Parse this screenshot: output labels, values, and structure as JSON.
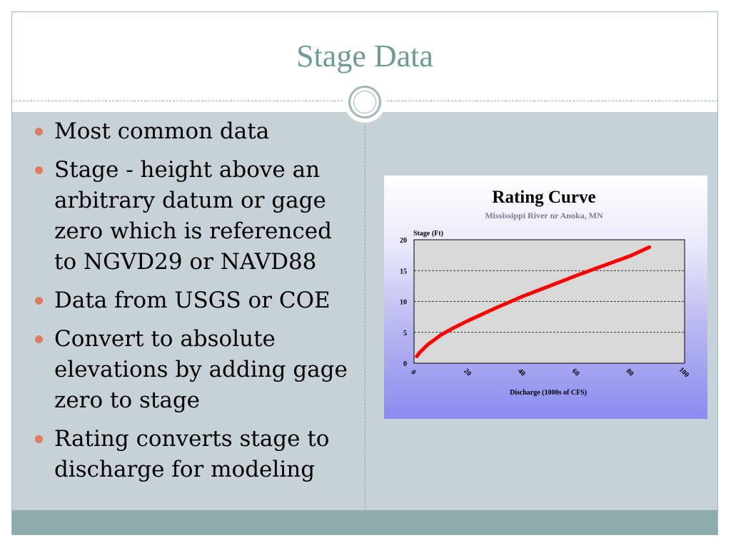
{
  "slide": {
    "title": "Stage Data",
    "bullets": [
      "Most common data",
      "Stage - height above an arbitrary datum or gage zero which is referenced to NGVD29 or NAVD88",
      "Data from USGS or COE",
      "Convert to absolute elevations by adding gage zero to stage",
      "Rating converts stage to discharge for modeling"
    ]
  },
  "colors": {
    "title": "#6d9c98",
    "bullet": "#e07b5b",
    "content_bg": "#c6d2d8",
    "footer": "#8eacac",
    "curve": "#ff0000",
    "plot_bg": "#d9d9d9"
  },
  "chart_data": {
    "type": "line",
    "title": "Rating Curve",
    "subtitle": "Mississippi River nr Anoka, MN",
    "xlabel": "Discharge (1000s of CFS)",
    "ylabel": "Stage (Ft)",
    "xlim": [
      0,
      100
    ],
    "ylim": [
      0,
      20
    ],
    "xticks": [
      "0",
      "20",
      "40",
      "60",
      "80",
      "100"
    ],
    "yticks": [
      "0",
      "5",
      "10",
      "15",
      "20"
    ],
    "grid": "horizontal dashed",
    "legend": "none",
    "series": [
      {
        "color": "#ff0000",
        "x": [
          1,
          2,
          5,
          10,
          15,
          20,
          25,
          30,
          40,
          50,
          60,
          70,
          80,
          87
        ],
        "y": [
          1.1,
          1.7,
          3.0,
          4.6,
          5.8,
          6.9,
          7.9,
          8.9,
          10.8,
          12.5,
          14.2,
          15.8,
          17.4,
          18.8
        ]
      }
    ]
  }
}
